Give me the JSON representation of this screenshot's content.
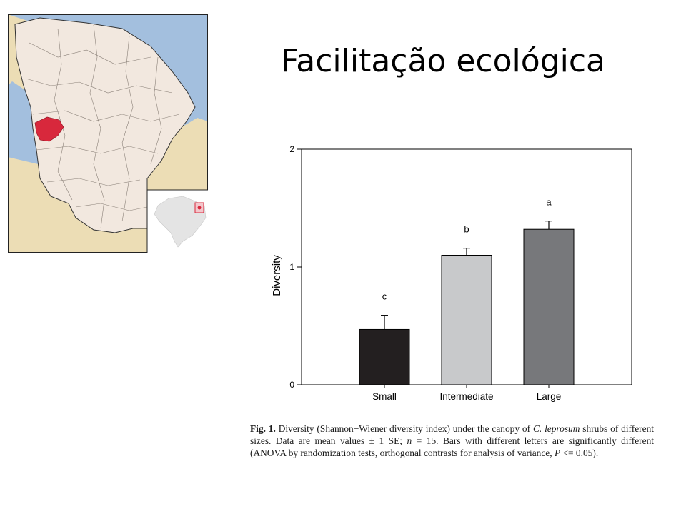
{
  "slide": {
    "title": "Facilitação ecológica"
  },
  "map": {
    "colors": {
      "ocean": "#a3bfde",
      "state": "#f2e8df",
      "neighbor": "#ecddb5",
      "highlight": "#d8283c",
      "brazil": "#e4e4e4",
      "border": "#333333"
    }
  },
  "chart_data": {
    "type": "bar",
    "categories": [
      "Small",
      "Intermediate",
      "Large"
    ],
    "values": [
      0.47,
      1.1,
      1.32
    ],
    "errors": [
      0.12,
      0.06,
      0.07
    ],
    "significance_letters": [
      "c",
      "b",
      "a"
    ],
    "bar_colors": [
      "#231f20",
      "#c8c9cb",
      "#77787b"
    ],
    "xlabel": "",
    "ylabel": "Diversity",
    "ylim": [
      0,
      2
    ],
    "yticks": [
      "0",
      "1",
      "2"
    ],
    "grid": false,
    "legend": "none"
  },
  "caption": {
    "label": "Fig. 1.",
    "text_1": " Diversity (Shannon−Wiener diversity index) under the canopy of ",
    "species": "C. leprosum",
    "text_2": " shrubs of different sizes. Data are mean values ± 1 SE; ",
    "n_symbol": "n",
    "text_3": " = 15. Bars with different letters are significantly different (ANOVA by randomization tests, orthogonal contrasts for analysis of variance, ",
    "p_symbol": "P",
    "text_4": " <= 0.05)."
  }
}
